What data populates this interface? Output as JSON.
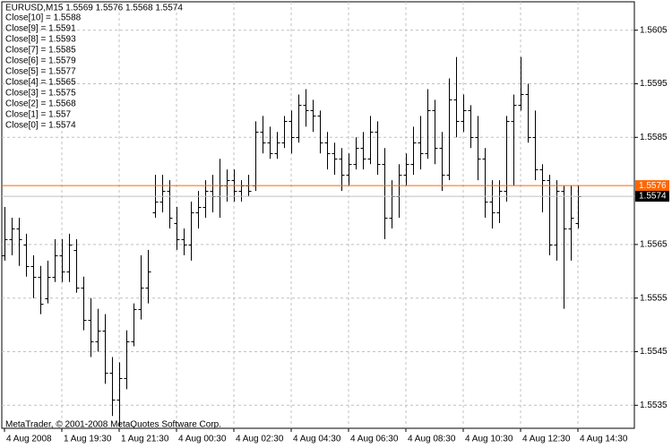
{
  "chart_data": {
    "type": "ohlc",
    "title": "EURUSD,M15  1.5569 1.5576 1.5568 1.5574",
    "annotations": [
      "Close[10] = 1.5588",
      "Close[9] = 1.5591",
      "Close[8] = 1.5593",
      "Close[7] = 1.5585",
      "Close[6] = 1.5579",
      "Close[5] = 1.5577",
      "Close[4] = 1.5565",
      "Close[3] = 1.5575",
      "Close[2] = 1.5568",
      "Close[1] = 1.557",
      "Close[0] = 1.5574"
    ],
    "footer": "MetaTrader, © 2001-2008 MetaQuotes Software Corp.",
    "categories": [
      "4 Aug 2008",
      null,
      null,
      null,
      null,
      null,
      null,
      null,
      "1 Aug 19:30",
      null,
      null,
      null,
      null,
      null,
      null,
      null,
      "1 Aug 21:30",
      null,
      null,
      null,
      null,
      null,
      null,
      null,
      "4 Aug 00:30",
      null,
      null,
      null,
      null,
      null,
      null,
      null,
      "4 Aug 02:30",
      null,
      null,
      null,
      null,
      null,
      null,
      null,
      "4 Aug 04:30",
      null,
      null,
      null,
      null,
      null,
      null,
      null,
      "4 Aug 06:30",
      null,
      null,
      null,
      null,
      null,
      null,
      null,
      "4 Aug 08:30",
      null,
      null,
      null,
      null,
      null,
      null,
      null,
      "4 Aug 10:30",
      null,
      null,
      null,
      null,
      null,
      null,
      null,
      "4 Aug 12:30",
      null,
      null,
      null,
      null,
      null,
      null,
      null,
      "4 Aug 14:30"
    ],
    "open": [
      1.5563,
      1.5566,
      1.5568,
      1.5565,
      1.5561,
      1.5559,
      1.5555,
      1.5559,
      1.5563,
      1.556,
      1.5564,
      1.5557,
      1.5551,
      1.5547,
      1.5549,
      1.5541,
      1.5536,
      1.554,
      1.5547,
      1.5553,
      1.5557,
      1.5571,
      1.5573,
      1.5575,
      1.5569,
      1.5566,
      1.5565,
      1.5571,
      1.5572,
      1.5575,
      1.5574,
      1.5576,
      1.5577,
      1.5575,
      1.5576,
      1.5576,
      1.5586,
      1.5584,
      1.5582,
      1.5584,
      1.5588,
      1.5585,
      1.5591,
      1.559,
      1.5589,
      1.5584,
      1.5582,
      1.5581,
      1.5578,
      1.558,
      1.5583,
      1.5581,
      1.5586,
      1.558,
      1.557,
      1.5574,
      1.5578,
      1.558,
      1.5584,
      1.5582,
      1.559,
      1.5583,
      1.5578,
      1.5592,
      1.5588,
      1.559,
      1.5585,
      1.5581,
      1.5573,
      1.5571,
      1.5575,
      1.5588,
      1.5591,
      1.5593,
      1.5585,
      1.5579,
      1.5577,
      1.5565,
      1.5575,
      1.5568,
      1.5569
    ],
    "high": [
      1.5572,
      1.557,
      1.557,
      1.5567,
      1.5563,
      1.5561,
      1.5562,
      1.5566,
      1.5566,
      1.5567,
      1.5566,
      1.5559,
      1.5555,
      1.5553,
      1.5552,
      1.5544,
      1.5543,
      1.5549,
      1.5554,
      1.5563,
      1.5564,
      1.5578,
      1.5578,
      1.5577,
      1.5572,
      1.5568,
      1.5573,
      1.5575,
      1.5577,
      1.5578,
      1.5581,
      1.5579,
      1.5579,
      1.5577,
      1.5578,
      1.5588,
      1.5589,
      1.5587,
      1.5586,
      1.5589,
      1.559,
      1.5593,
      1.5594,
      1.5592,
      1.559,
      1.5586,
      1.5584,
      1.5583,
      1.5582,
      1.5585,
      1.5586,
      1.5589,
      1.5588,
      1.5583,
      1.5577,
      1.558,
      1.5582,
      1.5587,
      1.5589,
      1.5594,
      1.5592,
      1.5586,
      1.5596,
      1.56,
      1.5593,
      1.5591,
      1.5589,
      1.5583,
      1.5577,
      1.5577,
      1.5589,
      1.5593,
      1.56,
      1.5595,
      1.559,
      1.558,
      1.5578,
      1.5577,
      1.5576,
      1.5576,
      1.5576
    ],
    "low": [
      1.5562,
      1.5563,
      1.5561,
      1.5559,
      1.5555,
      1.5552,
      1.5554,
      1.5558,
      1.5558,
      1.5558,
      1.5556,
      1.5549,
      1.5544,
      1.5545,
      1.5539,
      1.5533,
      1.5531,
      1.5538,
      1.5546,
      1.5551,
      1.5554,
      1.557,
      1.5571,
      1.5568,
      1.5564,
      1.5563,
      1.5562,
      1.5568,
      1.557,
      1.5571,
      1.557,
      1.5573,
      1.5573,
      1.5573,
      1.5574,
      1.5575,
      1.5582,
      1.5581,
      1.5581,
      1.5583,
      1.5582,
      1.5584,
      1.5587,
      1.5586,
      1.5582,
      1.5579,
      1.5578,
      1.5575,
      1.5576,
      1.5579,
      1.5579,
      1.558,
      1.5578,
      1.5566,
      1.5568,
      1.557,
      1.5576,
      1.5578,
      1.5579,
      1.5581,
      1.558,
      1.5575,
      1.5577,
      1.5585,
      1.5586,
      1.5583,
      1.5577,
      1.557,
      1.5568,
      1.5569,
      1.5573,
      1.5576,
      1.559,
      1.5584,
      1.5577,
      1.5571,
      1.5563,
      1.5562,
      1.5553,
      1.5562,
      1.5568
    ],
    "close": [
      1.5566,
      1.5568,
      1.5566,
      1.5561,
      1.5559,
      1.5554,
      1.5559,
      1.5563,
      1.556,
      1.5565,
      1.5557,
      1.5551,
      1.5547,
      1.5549,
      1.5541,
      1.5536,
      1.554,
      1.5547,
      1.5553,
      1.5557,
      1.556,
      1.5573,
      1.5575,
      1.557,
      1.5566,
      1.5565,
      1.5571,
      1.5572,
      1.5575,
      1.5574,
      1.5576,
      1.5577,
      1.5575,
      1.5576,
      1.5575,
      1.5586,
      1.5584,
      1.5582,
      1.5584,
      1.5588,
      1.5585,
      1.5591,
      1.559,
      1.5589,
      1.5584,
      1.5582,
      1.5581,
      1.5578,
      1.558,
      1.5583,
      1.5581,
      1.5586,
      1.558,
      1.557,
      1.5574,
      1.5578,
      1.558,
      1.5584,
      1.5582,
      1.559,
      1.5583,
      1.5578,
      1.5592,
      1.5588,
      1.559,
      1.5585,
      1.5581,
      1.5573,
      1.5571,
      1.5575,
      1.5588,
      1.5591,
      1.5593,
      1.5585,
      1.5579,
      1.5577,
      1.5565,
      1.5575,
      1.5568,
      1.557,
      1.5574
    ],
    "color": "#000000",
    "ylim": [
      1.55307,
      1.56103
    ],
    "yticks": [
      1.5605,
      1.5595,
      1.5585,
      1.5565,
      1.5555,
      1.5545,
      1.5535
    ],
    "grid": true,
    "price_lines": [
      {
        "value": 1.5576,
        "color": "#ff6600",
        "text_color": "#ffffff"
      },
      {
        "value": 1.5574,
        "color": "#000000",
        "line_color": "#c0c0c0",
        "text_color": "#ffffff"
      }
    ]
  }
}
